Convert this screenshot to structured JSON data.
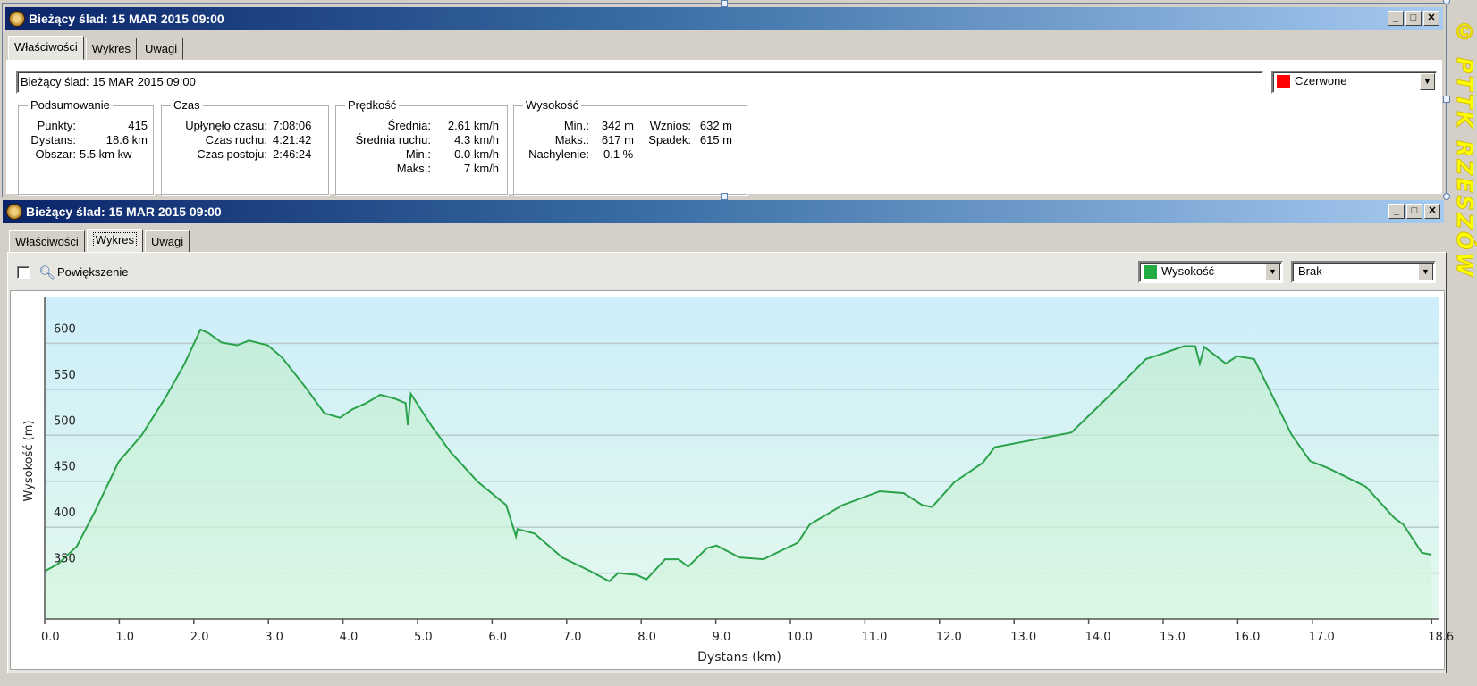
{
  "top_window": {
    "title": "Bieżący ślad: 15 MAR 2015 09:00",
    "tabs": [
      {
        "label": "Właściwości"
      },
      {
        "label": "Wykres"
      },
      {
        "label": "Uwagi"
      }
    ],
    "active_tab": "Właściwości",
    "name_value": "Bieżący ślad: 15 MAR 2015 09:00",
    "color_select": {
      "value": "Czerwone",
      "swatch": "#ff0000"
    },
    "groups": {
      "summary": {
        "title": "Podsumowanie",
        "rows": [
          {
            "label": "Punkty:",
            "value": "415"
          },
          {
            "label": "Dystans:",
            "value": "18.6 km"
          },
          {
            "label": "Obszar:",
            "value": "5.5 km kw"
          }
        ]
      },
      "time": {
        "title": "Czas",
        "rows": [
          {
            "label": "Upłynęło czasu:",
            "value": "7:08:06"
          },
          {
            "label": "Czas ruchu:",
            "value": "4:21:42"
          },
          {
            "label": "Czas postoju:",
            "value": "2:46:24"
          }
        ]
      },
      "speed": {
        "title": "Prędkość",
        "rows": [
          {
            "label": "Średnia:",
            "value": "2.61 km/h"
          },
          {
            "label": "Średnia ruchu:",
            "value": "4.3 km/h"
          },
          {
            "label": "Min.:",
            "value": "0.0 km/h"
          },
          {
            "label": "Maks.:",
            "value": "7 km/h"
          }
        ]
      },
      "elevation": {
        "title": "Wysokość",
        "rows": [
          {
            "label": "Min.:",
            "value": "342 m",
            "label2": "Wznios:",
            "value2": "632 m"
          },
          {
            "label": "Maks.:",
            "value": "617 m",
            "label2": "Spadek:",
            "value2": "615 m"
          },
          {
            "label": "Nachylenie:",
            "value": "0.1 %"
          }
        ]
      }
    }
  },
  "bottom_window": {
    "title": "Bieżący ślad: 15 MAR 2015 09:00",
    "tabs": [
      {
        "label": "Właściwości"
      },
      {
        "label": "Wykres"
      },
      {
        "label": "Uwagi"
      }
    ],
    "active_tab": "Wykres",
    "zoom_label": "Powiększenie",
    "zoom_checked": false,
    "series_select": {
      "value": "Wysokość",
      "swatch": "#22aa44"
    },
    "second_select": {
      "value": "Brak"
    }
  },
  "window_buttons": {
    "minimize": "_",
    "maximize": "□",
    "close": "✕"
  },
  "watermark": "© PTTK RZESZÓW",
  "chart_data": {
    "type": "area",
    "xlabel": "Dystans  (km)",
    "ylabel": "Wysokość (m)",
    "xlim": [
      0,
      18.6
    ],
    "ylim": [
      300,
      650
    ],
    "xticks": [
      0.0,
      1.0,
      2.0,
      3.0,
      4.0,
      5.0,
      6.0,
      7.0,
      8.0,
      9.0,
      10.0,
      11.0,
      12.0,
      13.0,
      14.0,
      15.0,
      16.0,
      17.0,
      18.6
    ],
    "xtick_labels": [
      "0.0",
      "1.0",
      "2.0",
      "3.0",
      "4.0",
      "5.0",
      "6.0",
      "7.0",
      "8.0",
      "9.0",
      "10.0",
      "11.0",
      "12.0",
      "13.0",
      "14.0",
      "15.0",
      "16.0",
      "17.0",
      "18.6"
    ],
    "yticks": [
      350,
      400,
      450,
      500,
      550,
      600
    ],
    "ytick_labels": [
      "350",
      "400",
      "450",
      "500",
      "550",
      "600"
    ],
    "grid": true,
    "line_color": "#2aa24a",
    "x": [
      0,
      0.18,
      0.43,
      0.68,
      0.99,
      1.3,
      1.62,
      1.87,
      2.09,
      2.2,
      2.37,
      2.58,
      2.74,
      2.99,
      3.18,
      3.5,
      3.75,
      3.96,
      4.12,
      4.31,
      4.5,
      4.69,
      4.84,
      4.87,
      4.91,
      5.19,
      5.44,
      5.81,
      6.19,
      6.32,
      6.34,
      6.57,
      6.94,
      7.32,
      7.57,
      7.69,
      7.94,
      8.07,
      8.32,
      8.5,
      8.63,
      8.88,
      9.01,
      9.32,
      9.64,
      9.89,
      10.1,
      10.26,
      10.7,
      11.2,
      11.52,
      11.77,
      11.9,
      12.2,
      12.58,
      12.74,
      13.77,
      14.33,
      14.77,
      14.96,
      15.28,
      15.43,
      15.49,
      15.55,
      15.84,
      15.99,
      16.22,
      16.47,
      16.72,
      16.97,
      17.22,
      17.72,
      18.1,
      18.22,
      18.47,
      18.6
    ],
    "y": [
      352,
      360,
      379,
      418,
      471,
      500,
      541,
      577,
      615,
      611,
      601,
      598,
      603,
      598,
      585,
      552,
      524,
      519,
      528,
      535,
      544,
      540,
      535,
      511,
      545,
      510,
      482,
      449,
      424,
      390,
      398,
      393,
      367,
      352,
      341,
      350,
      348,
      343,
      365,
      365,
      357,
      377,
      380,
      367,
      365,
      375,
      383,
      403,
      424,
      439,
      437,
      424,
      422,
      449,
      470,
      487,
      503,
      547,
      583,
      588,
      597,
      597,
      578,
      596,
      578,
      586,
      583,
      542,
      501,
      472,
      464,
      444,
      410,
      403,
      372,
      370
    ]
  }
}
